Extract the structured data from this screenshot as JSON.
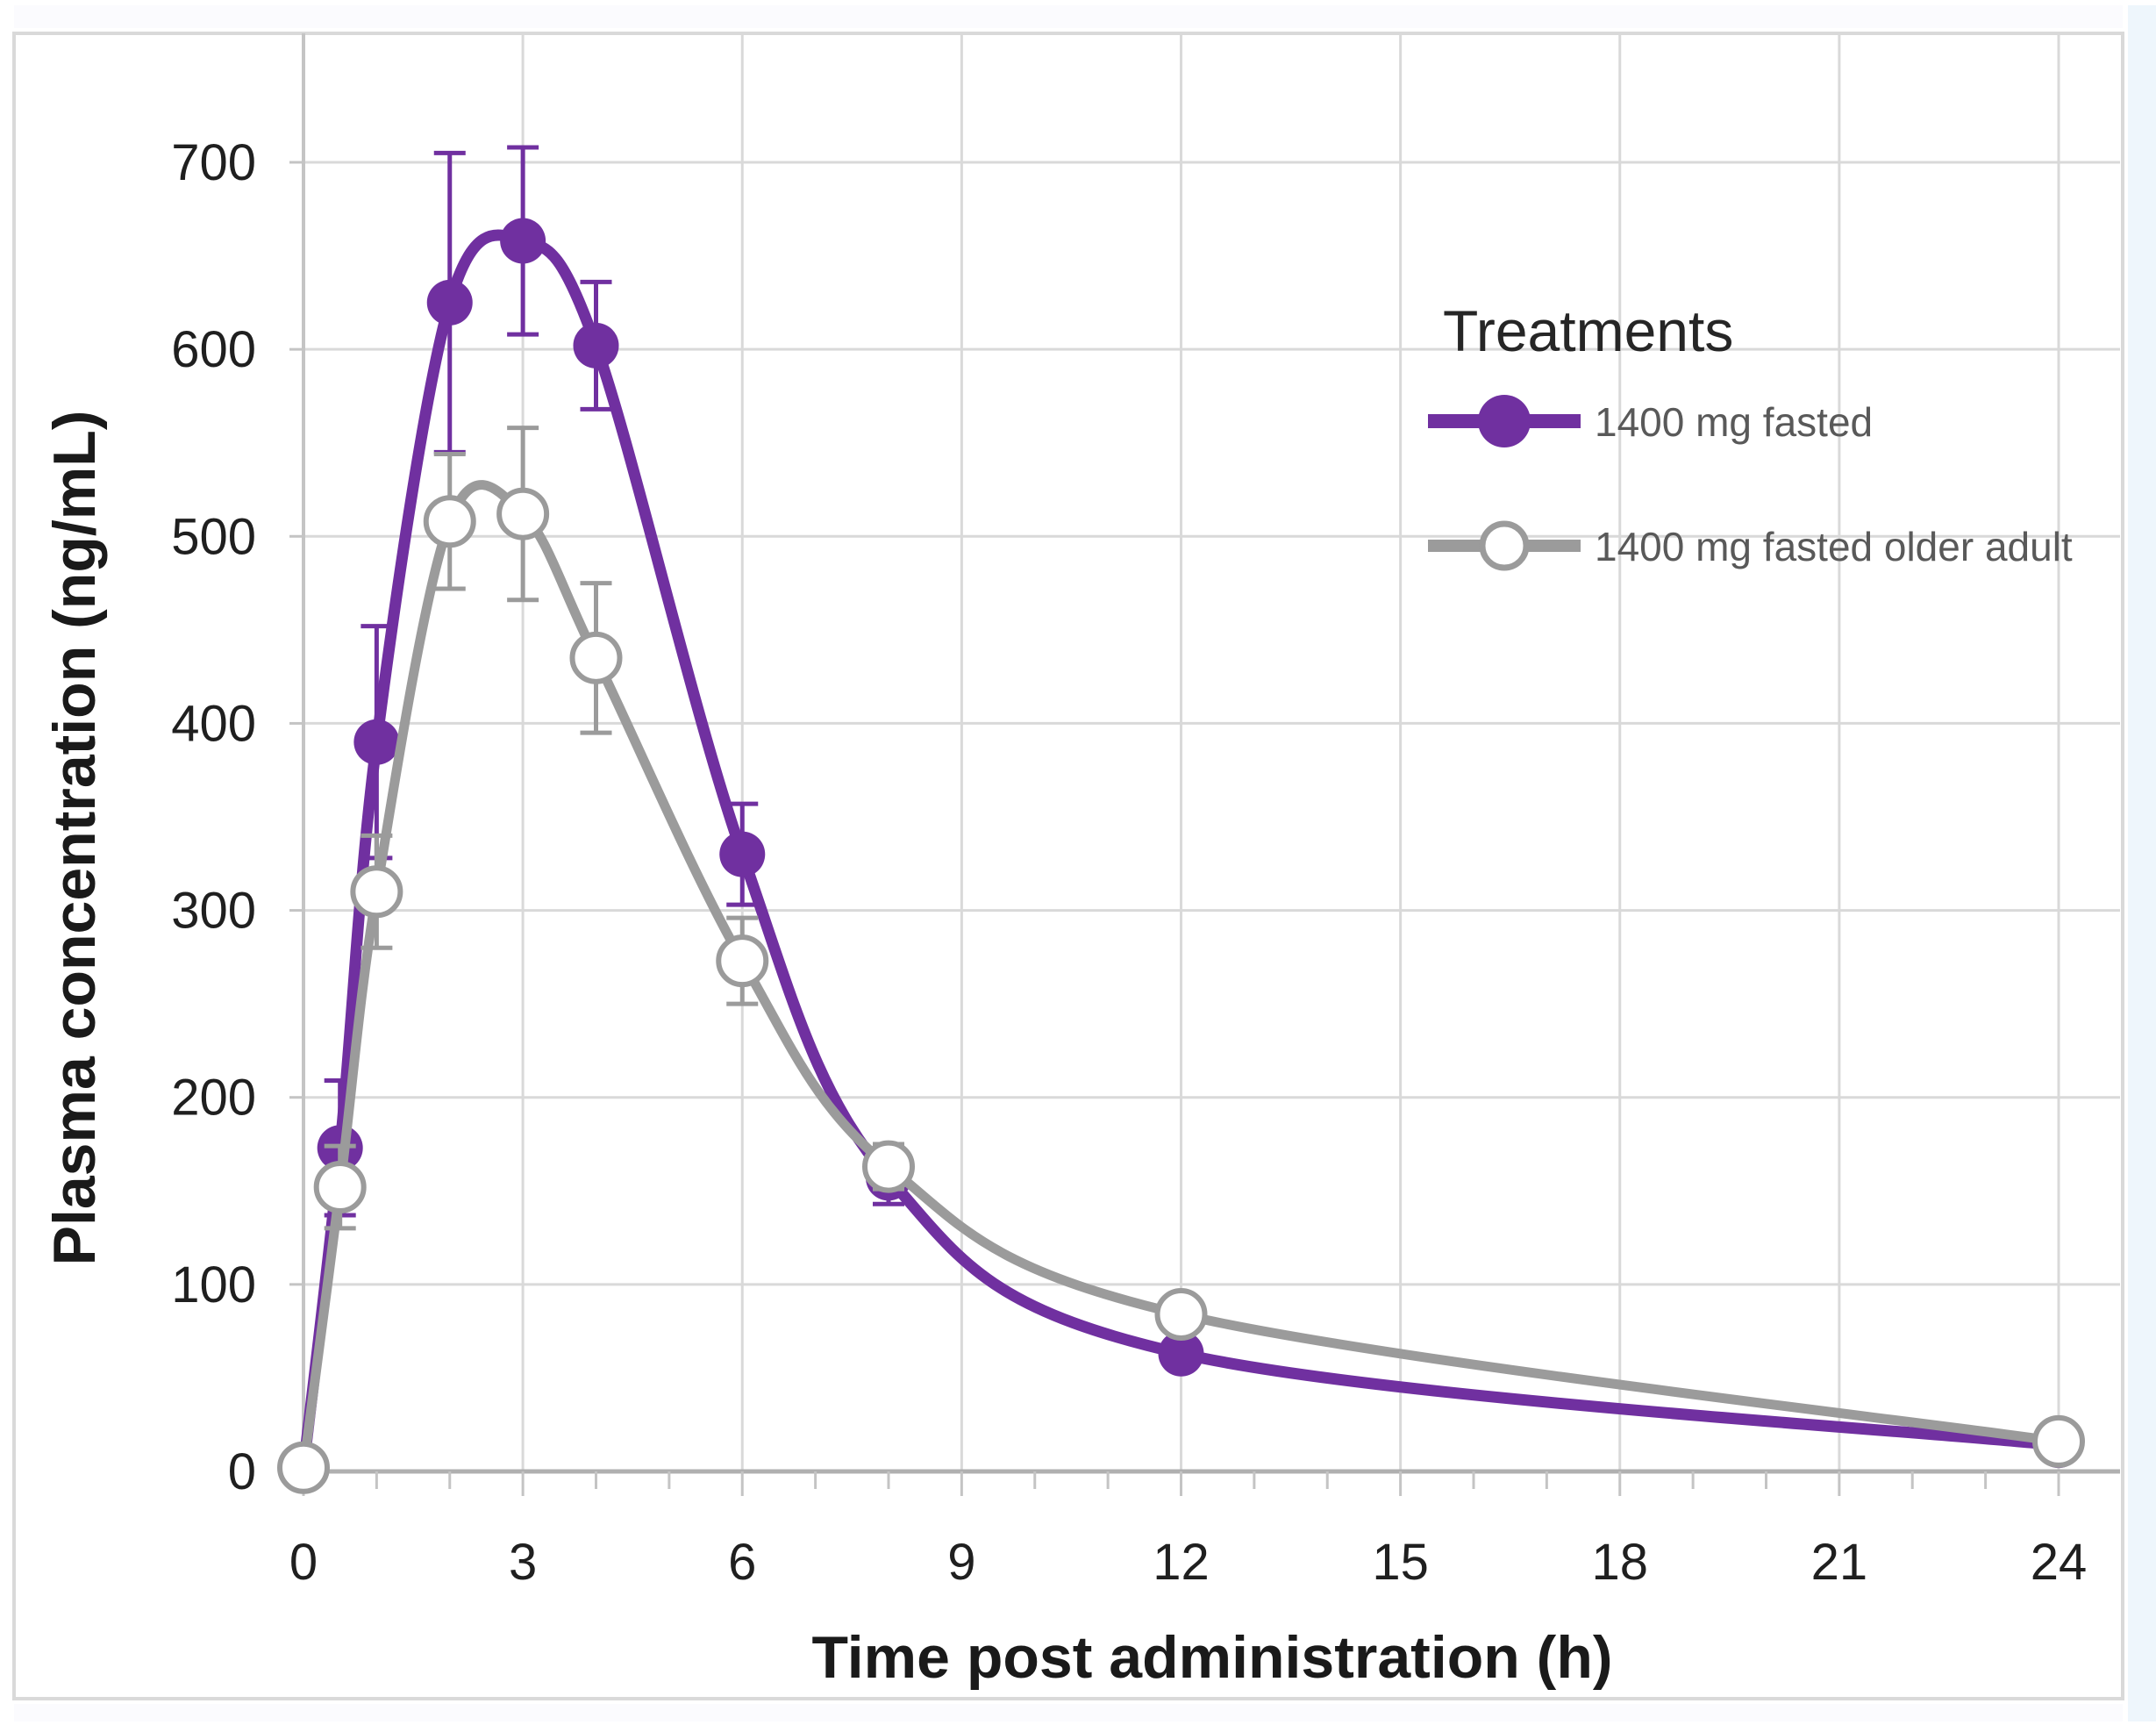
{
  "figure": {
    "background": "#ffffff",
    "border_color": "#d9d9d9",
    "top_strip_color": "#fbfbfe",
    "bottom_strip_color": "#fbfbfe",
    "right_strip_color": "#eef6fc"
  },
  "style": {
    "gridline_color": "#d9d9d9",
    "axis_line_color": "#b0b0b0",
    "tick_color": "#c4c4c4",
    "tick_label_color": "#1f1f1f",
    "axis_title_color": "#1a1a1a",
    "legend_title_color": "#262626",
    "legend_text_color": "#595959",
    "purple": "#7030a0",
    "gray": "#9b9b9b"
  },
  "chart_data": {
    "type": "line",
    "title": "",
    "legend_title": "Treatments",
    "xlabel": "Time post administration (h)",
    "ylabel": "Plasma concentration (ng/mL)",
    "xlim": [
      0,
      24
    ],
    "ylim": [
      0,
      700
    ],
    "xticks": [
      0,
      3,
      6,
      9,
      12,
      15,
      18,
      21,
      24
    ],
    "yticks": [
      0,
      100,
      200,
      300,
      400,
      500,
      600,
      700
    ],
    "minor_xtick_step": 1,
    "grid": true,
    "legend_position": "upper-right",
    "series": [
      {
        "name": "1400 mg fasted",
        "color": "#7030a0",
        "marker": "filled-circle",
        "smooth": true,
        "x": [
          0,
          0.5,
          1,
          2,
          3,
          4,
          6,
          8,
          12,
          24
        ],
        "y": [
          2,
          173,
          390,
          625,
          658,
          602,
          330,
          157,
          63,
          14
        ],
        "yerr": [
          0,
          36,
          62,
          80,
          50,
          34,
          27,
          14,
          0,
          0
        ]
      },
      {
        "name": "1400 mg fasted older adult",
        "color": "#9b9b9b",
        "marker": "open-circle",
        "smooth": true,
        "x": [
          0,
          0.5,
          1,
          2,
          3,
          4,
          6,
          8,
          12,
          24
        ],
        "y": [
          2,
          152,
          310,
          508,
          512,
          435,
          273,
          163,
          84,
          16
        ],
        "yerr": [
          0,
          22,
          30,
          36,
          46,
          40,
          23,
          12,
          0,
          0
        ]
      }
    ]
  }
}
